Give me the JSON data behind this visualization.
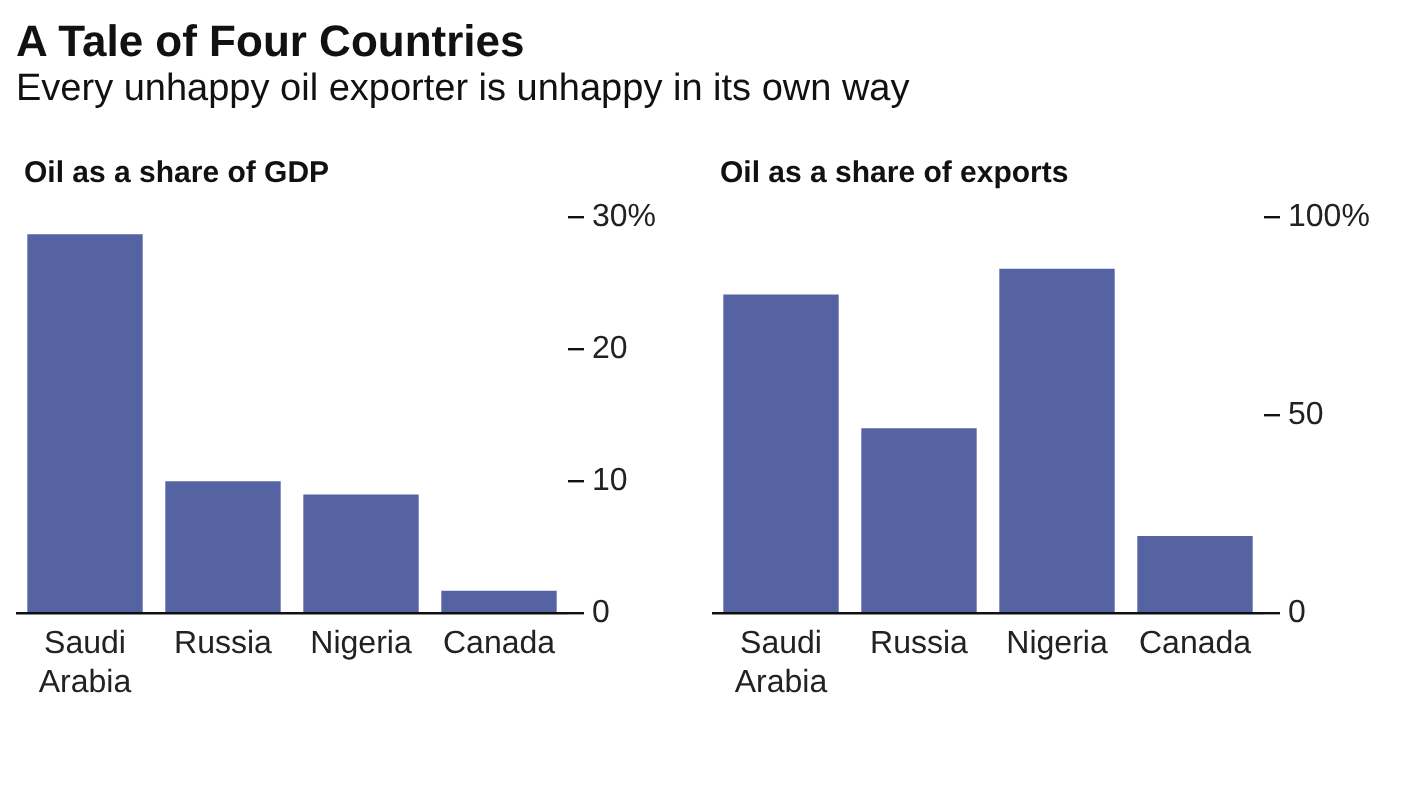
{
  "chart_data": [
    {
      "type": "bar",
      "title": "A Tale of Four Countries",
      "subtitle": "Every unhappy oil exporter is unhappy in its own way",
      "ylabel": "Oil as a share of GDP",
      "categories": [
        "Saudi Arabia",
        "Russia",
        "Nigeria",
        "Canada"
      ],
      "values": [
        28.7,
        10,
        9,
        1.7
      ],
      "color": "#5663a3",
      "ylim": [
        0,
        30
      ],
      "yticks": [
        {
          "value": 30,
          "label": "30%"
        },
        20,
        10,
        0
      ],
      "grid": false,
      "legend": false
    },
    {
      "type": "bar",
      "ylabel": "Oil as a share of exports",
      "categories": [
        "Saudi Arabia",
        "Russia",
        "Nigeria",
        "Canada"
      ],
      "values": [
        80.5,
        46.7,
        87,
        19.5
      ],
      "color": "#5663a3",
      "ylim": [
        0,
        100
      ],
      "yticks": [
        {
          "value": 100,
          "label": "100%"
        },
        50,
        0
      ],
      "grid": false,
      "legend": false
    }
  ]
}
